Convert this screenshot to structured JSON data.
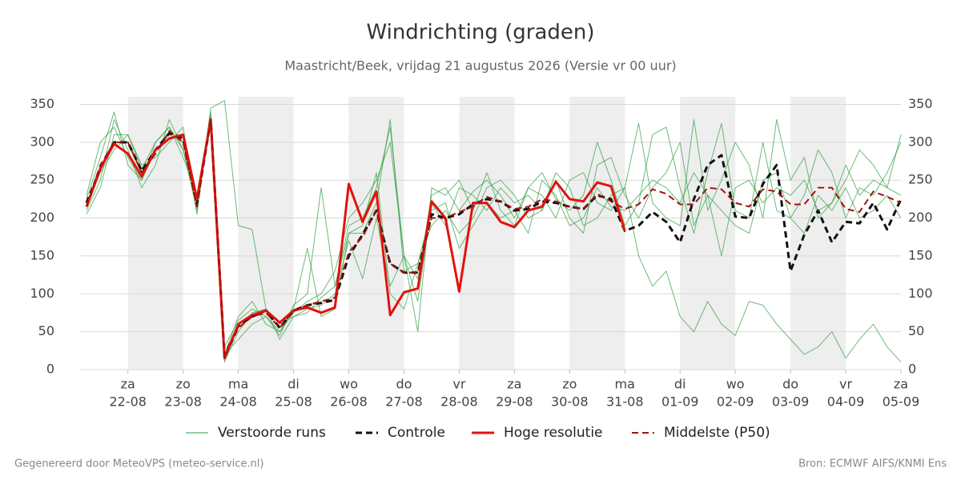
{
  "chart_data": {
    "type": "line",
    "title": "Windrichting (graden)",
    "subtitle": "Maastricht/Beek, vrijdag 21 augustus 2026 (Versie vr 00 uur)",
    "footer_left": "Gegenereerd door MeteoVPS (meteo-service.nl)",
    "footer_right": "Bron: ECMWF AIFS/KNMI Ens",
    "xlim": [
      0.25,
      15
    ],
    "ylim": [
      0,
      360
    ],
    "yticks": [
      0,
      50,
      100,
      150,
      200,
      250,
      300,
      350
    ],
    "grid": true,
    "xticks": [
      {
        "value": 1,
        "day": "za",
        "label": "22-08"
      },
      {
        "value": 2,
        "day": "zo",
        "label": "23-08"
      },
      {
        "value": 3,
        "day": "ma",
        "label": "24-08"
      },
      {
        "value": 4,
        "day": "di",
        "label": "25-08"
      },
      {
        "value": 5,
        "day": "wo",
        "label": "26-08"
      },
      {
        "value": 6,
        "day": "do",
        "label": "27-08"
      },
      {
        "value": 7,
        "day": "vr",
        "label": "28-08"
      },
      {
        "value": 8,
        "day": "za",
        "label": "29-08"
      },
      {
        "value": 9,
        "day": "zo",
        "label": "30-08"
      },
      {
        "value": 10,
        "day": "ma",
        "label": "31-08"
      },
      {
        "value": 11,
        "day": "di",
        "label": "01-09"
      },
      {
        "value": 12,
        "day": "wo",
        "label": "02-09"
      },
      {
        "value": 13,
        "day": "do",
        "label": "03-09"
      },
      {
        "value": 14,
        "day": "vr",
        "label": "04-09"
      },
      {
        "value": 15,
        "day": "za",
        "label": "05-09"
      }
    ],
    "x": [
      0.25,
      0.5,
      0.75,
      1,
      1.25,
      1.5,
      1.75,
      2,
      2.25,
      2.5,
      2.75,
      3,
      3.25,
      3.5,
      3.75,
      4,
      4.25,
      4.5,
      4.75,
      5,
      5.25,
      5.5,
      5.75,
      6,
      6.25,
      6.5,
      6.75,
      7,
      7.25,
      7.5,
      7.75,
      8,
      8.25,
      8.5,
      8.75,
      9,
      9.25,
      9.5,
      9.75,
      10,
      10.25,
      10.5,
      10.75,
      11,
      11.25,
      11.5,
      11.75,
      12,
      12.25,
      12.5,
      12.75,
      13,
      13.25,
      13.5,
      13.75,
      14,
      14.25,
      14.5,
      14.75,
      15
    ],
    "series": [
      {
        "name": "Verstoorde runs",
        "color": "#2f9e3f",
        "dashed": false,
        "runs": [
          [
            210,
            250,
            330,
            290,
            240,
            270,
            330,
            290,
            210,
            345,
            355,
            190,
            185,
            80,
            60,
            70,
            75,
            95,
            110,
            190,
            200,
            240,
            320,
            150,
            120,
            230,
            240,
            210,
            235,
            250,
            230,
            200,
            240,
            260,
            225,
            210,
            230,
            300,
            250,
            190,
            220,
            310,
            320,
            240,
            180,
            260,
            325,
            210,
            200,
            300,
            210,
            200,
            230,
            290,
            260,
            200,
            240,
            230,
            260,
            300
          ],
          [
            225,
            280,
            340,
            270,
            250,
            300,
            320,
            280,
            230,
            320,
            20,
            40,
            60,
            70,
            45,
            85,
            100,
            240,
            110,
            180,
            190,
            260,
            100,
            80,
            140,
            190,
            210,
            180,
            200,
            240,
            250,
            230,
            200,
            210,
            260,
            240,
            190,
            200,
            230,
            240,
            150,
            110,
            130,
            70,
            50,
            90,
            60,
            45,
            90,
            85,
            60,
            40,
            20,
            30,
            50,
            15,
            40,
            60,
            30,
            10
          ],
          [
            205,
            240,
            310,
            310,
            270,
            280,
            300,
            320,
            205,
            340,
            30,
            65,
            80,
            70,
            50,
            75,
            90,
            100,
            130,
            200,
            220,
            250,
            300,
            150,
            50,
            240,
            230,
            250,
            210,
            260,
            210,
            190,
            240,
            230,
            200,
            250,
            260,
            220,
            210,
            240,
            325,
            220,
            200,
            190,
            330,
            210,
            250,
            300,
            270,
            200,
            330,
            250,
            280,
            200,
            220,
            250,
            290,
            270,
            240,
            310
          ],
          [
            230,
            300,
            320,
            280,
            250,
            290,
            310,
            300,
            220,
            325,
            10,
            50,
            75,
            80,
            40,
            70,
            80,
            85,
            100,
            170,
            120,
            200,
            110,
            150,
            90,
            220,
            190,
            240,
            230,
            210,
            240,
            220,
            230,
            210,
            250,
            200,
            180,
            270,
            280,
            230,
            200,
            240,
            260,
            300,
            190,
            230,
            210,
            190,
            180,
            250,
            260,
            200,
            180,
            230,
            210,
            240,
            200,
            210,
            230,
            200
          ],
          [
            215,
            260,
            290,
            310,
            265,
            300,
            320,
            290,
            225,
            335,
            20,
            70,
            90,
            60,
            50,
            80,
            160,
            70,
            80,
            180,
            180,
            220,
            330,
            130,
            140,
            210,
            220,
            160,
            190,
            220,
            200,
            210,
            180,
            250,
            230,
            190,
            200,
            240,
            215,
            210,
            230,
            250,
            240,
            220,
            260,
            230,
            150,
            240,
            250,
            220,
            240,
            230,
            250,
            210,
            220,
            270,
            230,
            250,
            240,
            230
          ]
        ]
      },
      {
        "name": "Controle",
        "color": "#111111",
        "dashed": true,
        "values": [
          220,
          265,
          300,
          300,
          262,
          290,
          312,
          305,
          218,
          330,
          18,
          58,
          70,
          78,
          55,
          78,
          85,
          88,
          92,
          150,
          178,
          210,
          140,
          128,
          128,
          205,
          200,
          205,
          218,
          225,
          222,
          210,
          212,
          222,
          220,
          215,
          212,
          230,
          225,
          183,
          190,
          208,
          195,
          168,
          225,
          270,
          283,
          202,
          200,
          245,
          270,
          130,
          178,
          210,
          168,
          195,
          193,
          220,
          185,
          225
        ]
      },
      {
        "name": "Hoge resolutie",
        "color": "#e3120b",
        "dashed": false,
        "values": [
          215,
          265,
          298,
          285,
          255,
          290,
          305,
          310,
          225,
          330,
          15,
          60,
          72,
          78,
          62,
          78,
          82,
          75,
          82,
          245,
          195,
          235,
          72,
          102,
          107,
          222,
          200,
          103,
          220,
          220,
          195,
          188,
          210,
          215,
          248,
          225,
          222,
          247,
          242,
          183,
          null,
          null,
          null,
          null,
          null,
          null,
          null,
          null,
          null,
          null,
          null,
          null,
          null,
          null,
          null,
          null,
          null,
          null,
          null,
          null
        ]
      },
      {
        "name": "Middelste (P50)",
        "color": "#a01212",
        "dashed": true,
        "values": [
          215,
          270,
          300,
          300,
          260,
          285,
          315,
          300,
          215,
          330,
          15,
          55,
          70,
          75,
          55,
          78,
          85,
          90,
          95,
          155,
          175,
          210,
          140,
          128,
          128,
          200,
          200,
          208,
          215,
          228,
          222,
          212,
          215,
          225,
          222,
          215,
          212,
          232,
          222,
          212,
          218,
          238,
          232,
          218,
          218,
          240,
          238,
          220,
          215,
          238,
          235,
          218,
          218,
          240,
          240,
          212,
          208,
          235,
          228,
          220
        ]
      }
    ]
  }
}
